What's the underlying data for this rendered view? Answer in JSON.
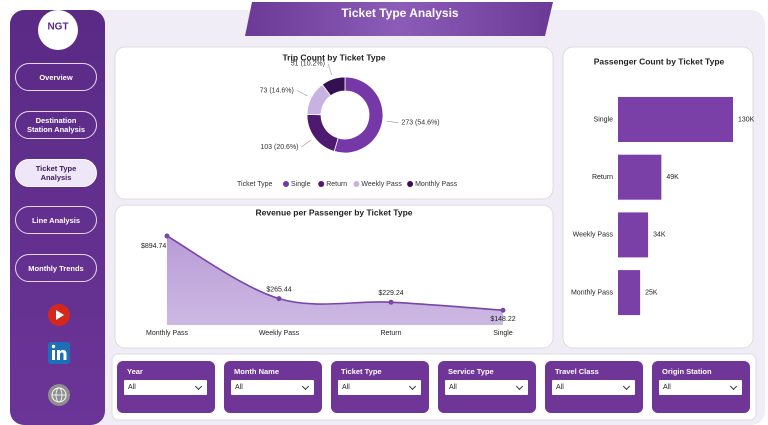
{
  "header": {
    "title": "Ticket Type Analysis"
  },
  "logo": {
    "text": "NGT"
  },
  "nav": [
    "Overview",
    "Destination Station Analysis",
    "Ticket Type Analysis",
    "Line Analysis",
    "Monthly Trends"
  ],
  "chart_data": [
    {
      "type": "pie",
      "title": "Trip Count by Ticket Type",
      "legend_title": "Ticket Type",
      "categories": [
        "Single",
        "Return",
        "Weekly Pass",
        "Monthly Pass"
      ],
      "values": [
        273,
        103,
        73,
        51
      ],
      "value_labels": [
        "273 (54.6%)",
        "103 (20.6%)",
        "73 (14.6%)",
        "51 (10.2%)"
      ],
      "colors": [
        "#7538a6",
        "#4e1a70",
        "#c8b2e2",
        "#351050"
      ]
    },
    {
      "type": "area",
      "title": "Revenue per Passenger by Ticket Type",
      "categories": [
        "Monthly Pass",
        "Weekly Pass",
        "Return",
        "Single"
      ],
      "values": [
        894.74,
        265.44,
        229.24,
        148.22
      ],
      "value_labels": [
        "$894.74",
        "$265.44",
        "$229.24",
        "$148.22"
      ],
      "color": "#7a45a8"
    },
    {
      "type": "barh",
      "title": "Passenger Count by Ticket Type",
      "categories": [
        "Single",
        "Return",
        "Weekly Pass",
        "Monthly Pass"
      ],
      "values": [
        130000,
        49000,
        34000,
        25000
      ],
      "value_labels": [
        "130K",
        "49K",
        "34K",
        "25K"
      ],
      "color": "#7a40a8"
    }
  ],
  "filters": [
    {
      "label": "Year",
      "value": "All"
    },
    {
      "label": "Month Name",
      "value": "All"
    },
    {
      "label": "Ticket Type",
      "value": "All"
    },
    {
      "label": "Service Type",
      "value": "All"
    },
    {
      "label": "Travel Class",
      "value": "All"
    },
    {
      "label": "Origin Station",
      "value": "All"
    }
  ]
}
